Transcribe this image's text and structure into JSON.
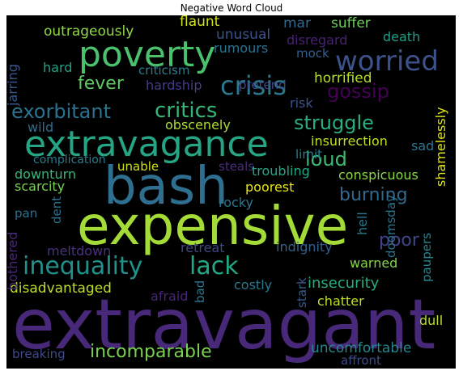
{
  "title": "Negative Word Cloud",
  "words": [
    {
      "text": "extravagant",
      "color": "#482878"
    },
    {
      "text": "expensive",
      "color": "#a5db36"
    },
    {
      "text": "bash",
      "color": "#2e6e8e"
    },
    {
      "text": "extravagance",
      "color": "#25a584"
    },
    {
      "text": "poverty",
      "color": "#4ac16d"
    },
    {
      "text": "worried",
      "color": "#3b528b"
    },
    {
      "text": "crisis",
      "color": "#2a788e"
    },
    {
      "text": "inequality",
      "color": "#21918c"
    },
    {
      "text": "lack",
      "color": "#22a884"
    },
    {
      "text": "incomparable",
      "color": "#7ad151"
    },
    {
      "text": "critics",
      "color": "#35b779"
    },
    {
      "text": "exorbitant",
      "color": "#2c728e"
    },
    {
      "text": "struggle",
      "color": "#29af7f"
    },
    {
      "text": "gossip",
      "color": "#440154"
    },
    {
      "text": "loud",
      "color": "#3dbc74"
    },
    {
      "text": "fever",
      "color": "#5ec962"
    },
    {
      "text": "burning",
      "color": "#31688e"
    },
    {
      "text": "poor",
      "color": "#414487"
    },
    {
      "text": "insecurity",
      "color": "#27ad81"
    },
    {
      "text": "disadvantaged",
      "color": "#bddf26"
    },
    {
      "text": "breaking",
      "color": "#3e4a89"
    },
    {
      "text": "uncomfortable",
      "color": "#24868e"
    },
    {
      "text": "outrageously",
      "color": "#8fd744"
    },
    {
      "text": "flaunt",
      "color": "#d2e21b"
    },
    {
      "text": "unusual",
      "color": "#3b528b"
    },
    {
      "text": "rumours",
      "color": "#2c728e"
    },
    {
      "text": "mar",
      "color": "#31688e"
    },
    {
      "text": "suffer",
      "color": "#6ece58"
    },
    {
      "text": "disregard",
      "color": "#482173"
    },
    {
      "text": "death",
      "color": "#1f9e89"
    },
    {
      "text": "mock",
      "color": "#35608d"
    },
    {
      "text": "hard",
      "color": "#20a386"
    },
    {
      "text": "criticism",
      "color": "#287d8e"
    },
    {
      "text": "hardship",
      "color": "#433e85"
    },
    {
      "text": "pretend",
      "color": "#3e4989"
    },
    {
      "text": "horrified",
      "color": "#b5de2b"
    },
    {
      "text": "risk",
      "color": "#3a548c"
    },
    {
      "text": "wild",
      "color": "#2f6c8e"
    },
    {
      "text": "obscenely",
      "color": "#addc30"
    },
    {
      "text": "insurrection",
      "color": "#c2df23"
    },
    {
      "text": "sad",
      "color": "#2c728e"
    },
    {
      "text": "limit",
      "color": "#277f8e"
    },
    {
      "text": "complication",
      "color": "#287c8e"
    },
    {
      "text": "unable",
      "color": "#d0e11c"
    },
    {
      "text": "steals",
      "color": "#472d7b"
    },
    {
      "text": "troubling",
      "color": "#22a785"
    },
    {
      "text": "conspicuous",
      "color": "#8bd646"
    },
    {
      "text": "downturn",
      "color": "#35b779"
    },
    {
      "text": "scarcity",
      "color": "#7ad151"
    },
    {
      "text": "poorest",
      "color": "#e7e419"
    },
    {
      "text": "rocky",
      "color": "#2a768e"
    },
    {
      "text": "pan",
      "color": "#2d708e"
    },
    {
      "text": "meltdown",
      "color": "#46327e"
    },
    {
      "text": "retreat",
      "color": "#3f4788"
    },
    {
      "text": "indignity",
      "color": "#34618d"
    },
    {
      "text": "warned",
      "color": "#84d44b"
    },
    {
      "text": "costly",
      "color": "#2a788e"
    },
    {
      "text": "chatter",
      "color": "#c0df25"
    },
    {
      "text": "afraid",
      "color": "#482576"
    },
    {
      "text": "dull",
      "color": "#b8de29"
    },
    {
      "text": "affront",
      "color": "#3d4d8a"
    },
    {
      "text": "jarring",
      "color": "#39568c"
    },
    {
      "text": "dent",
      "color": "#2d718e"
    },
    {
      "text": "bothered",
      "color": "#482878"
    },
    {
      "text": "hell",
      "color": "#2a768e"
    },
    {
      "text": "bad",
      "color": "#2b748e"
    },
    {
      "text": "stark",
      "color": "#375b8d"
    },
    {
      "text": "doomsday",
      "color": "#2c738e"
    },
    {
      "text": "paupers",
      "color": "#24868e"
    },
    {
      "text": "shamelessly",
      "color": "#dde318"
    }
  ]
}
